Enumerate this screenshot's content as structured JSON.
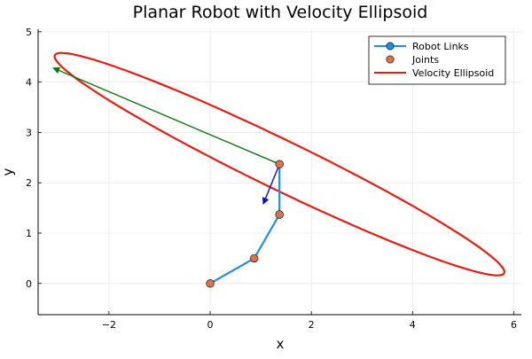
{
  "chart_data": {
    "type": "scatter",
    "title": "Planar Robot with Velocity Ellipsoid",
    "xlabel": "x",
    "ylabel": "y",
    "xlim": [
      -3.4,
      6.15
    ],
    "ylim": [
      -0.62,
      5.05
    ],
    "xticks": [
      -2,
      0,
      2,
      4,
      6
    ],
    "yticks": [
      0,
      1,
      2,
      3,
      4,
      5
    ],
    "grid": true,
    "legend_position": "top-right",
    "series": [
      {
        "name": "Robot Links",
        "kind": "line",
        "color": "#1f8fe0",
        "x": [
          0,
          0.87,
          1.37,
          1.37
        ],
        "y": [
          0,
          0.5,
          1.37,
          2.37
        ]
      },
      {
        "name": "Joints",
        "kind": "scatter",
        "color": "#e26f46",
        "x": [
          0,
          0.87,
          1.37,
          1.37
        ],
        "y": [
          0,
          0.5,
          1.37,
          2.37
        ]
      },
      {
        "name": "Velocity Ellipsoid",
        "kind": "ellipse",
        "color": "#e81c10",
        "center": [
          1.37,
          2.37
        ],
        "semi_major": 4.94,
        "semi_minor": 0.49,
        "angle_deg": -26
      }
    ],
    "arrows": [
      {
        "color": "#0a7a0a",
        "from": [
          1.37,
          2.37
        ],
        "to": [
          -3.1,
          4.28
        ]
      },
      {
        "color": "#1010cc",
        "from": [
          1.37,
          2.37
        ],
        "to": [
          1.05,
          1.58
        ]
      }
    ]
  }
}
